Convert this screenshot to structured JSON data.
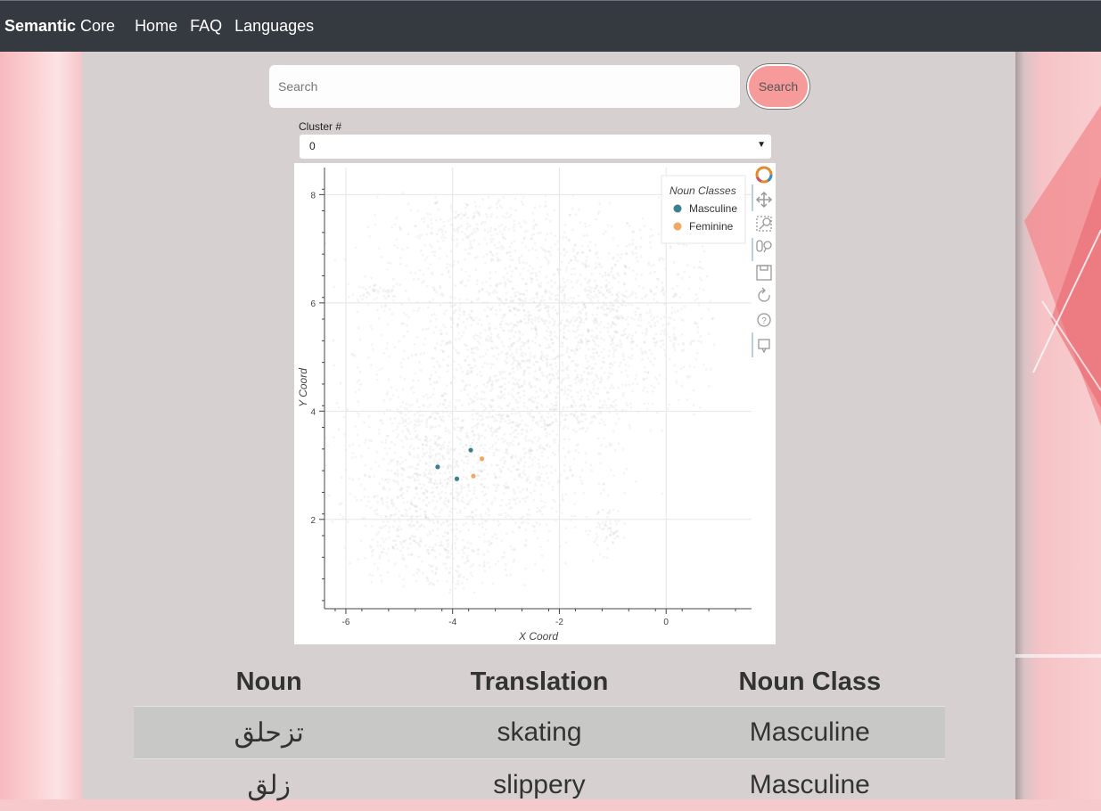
{
  "nav": {
    "brand_bold": "Semantic",
    "brand_rest": " Core",
    "links": [
      "Home",
      "FAQ",
      "Languages"
    ]
  },
  "search": {
    "placeholder": "Search",
    "button_label": "Search"
  },
  "cluster": {
    "label": "Cluster #",
    "selected": "0"
  },
  "chart_data": {
    "type": "scatter",
    "xlabel": "X Coord",
    "ylabel": "Y Coord",
    "xlim": [
      -6.4,
      1.6
    ],
    "ylim": [
      0.35,
      8.5
    ],
    "xticks": [
      -6,
      -4,
      -2,
      0
    ],
    "yticks": [
      2,
      4,
      6,
      8
    ],
    "grid": true,
    "legend": {
      "title": "Noun Classes",
      "position": "top-right",
      "entries": [
        "Masculine",
        "Feminine"
      ]
    },
    "colors": {
      "Masculine": "#3c7f8f",
      "Feminine": "#f0a862",
      "background": "#b0b0b0"
    },
    "series": [
      {
        "name": "Masculine",
        "points": [
          [
            -4.28,
            2.97
          ],
          [
            -3.66,
            3.28
          ],
          [
            -3.92,
            2.75
          ]
        ]
      },
      {
        "name": "Feminine",
        "points": [
          [
            -3.45,
            3.12
          ],
          [
            -3.61,
            2.8
          ]
        ]
      }
    ]
  },
  "table": {
    "headers": [
      "Noun",
      "Translation",
      "Noun Class"
    ],
    "rows": [
      [
        "تزحلق",
        "skating",
        "Masculine"
      ],
      [
        "زلق",
        "slippery",
        "Masculine"
      ]
    ]
  }
}
